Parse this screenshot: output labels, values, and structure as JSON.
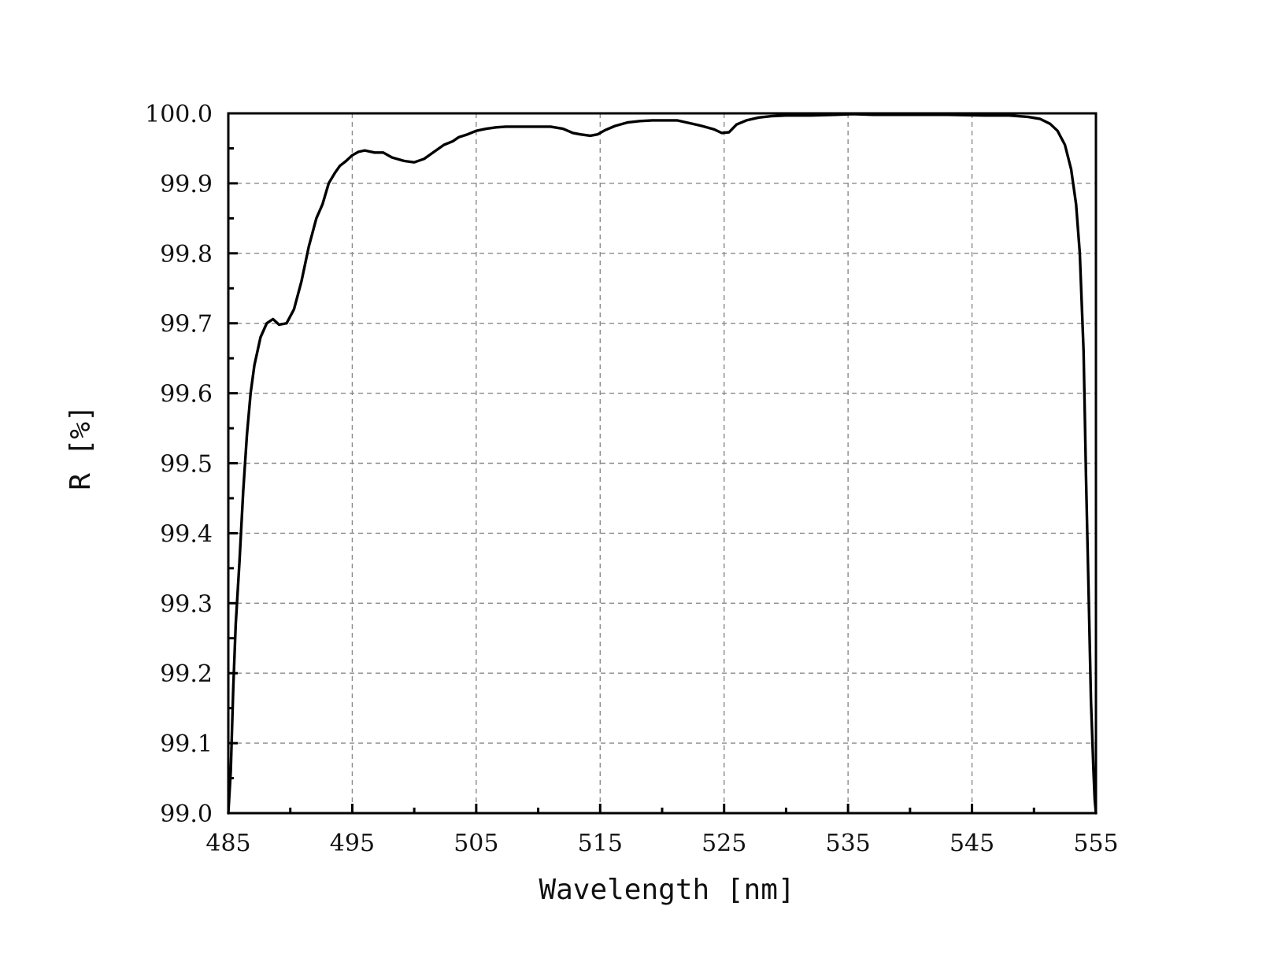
{
  "chart_data": {
    "type": "line",
    "xlabel": "Wavelength [nm]",
    "ylabel": "R [%]",
    "xlim": [
      485,
      555
    ],
    "ylim": [
      99.0,
      100.0
    ],
    "x_ticks": [
      "485",
      "495",
      "505",
      "515",
      "525",
      "535",
      "545",
      "555"
    ],
    "y_ticks": [
      "99.0",
      "99.1",
      "99.2",
      "99.3",
      "99.4",
      "99.5",
      "99.6",
      "99.7",
      "99.8",
      "99.9",
      "100.0"
    ],
    "grid": true,
    "line_color": "#000000",
    "series": [
      {
        "x": [
          485.0,
          485.2,
          485.4,
          485.6,
          485.9,
          486.2,
          486.5,
          486.8,
          487.1,
          487.6,
          488.1,
          488.6,
          489.1,
          489.7,
          490.3,
          490.9,
          491.5,
          492.1,
          492.6,
          493.1,
          493.6,
          494.0,
          494.5,
          495.0,
          495.5,
          496.0,
          496.8,
          497.5,
          498.2,
          499.2,
          500.0,
          500.8,
          501.6,
          502.4,
          503.1,
          503.6,
          504.3,
          505.0,
          505.8,
          506.6,
          507.4,
          508.2,
          509.0,
          510.0,
          511.0,
          512.0,
          512.8,
          513.4,
          514.2,
          514.8,
          515.4,
          516.2,
          517.2,
          518.2,
          519.2,
          520.2,
          521.2,
          522.2,
          523.2,
          524.2,
          524.8,
          525.4,
          526.0,
          526.8,
          527.8,
          528.8,
          530.0,
          532.0,
          534.0,
          535.4,
          537.0,
          540.0,
          543.0,
          546.0,
          548.0,
          549.5,
          550.5,
          551.3,
          551.9,
          552.5,
          553.0,
          553.4,
          553.7,
          554.0,
          554.2,
          554.4,
          554.6,
          554.8,
          554.9,
          555.0
        ],
        "y": [
          99.0,
          99.06,
          99.18,
          99.27,
          99.36,
          99.46,
          99.54,
          99.6,
          99.64,
          99.68,
          99.7,
          99.706,
          99.698,
          99.7,
          99.72,
          99.76,
          99.81,
          99.85,
          99.87,
          99.9,
          99.915,
          99.925,
          99.932,
          99.94,
          99.945,
          99.947,
          99.944,
          99.944,
          99.937,
          99.932,
          99.93,
          99.935,
          99.945,
          99.955,
          99.96,
          99.966,
          99.97,
          99.975,
          99.978,
          99.98,
          99.981,
          99.981,
          99.981,
          99.981,
          99.981,
          99.978,
          99.972,
          99.97,
          99.968,
          99.97,
          99.976,
          99.982,
          99.987,
          99.989,
          99.99,
          99.99,
          99.99,
          99.986,
          99.982,
          99.977,
          99.972,
          99.973,
          99.984,
          99.99,
          99.994,
          99.996,
          99.997,
          99.997,
          99.998,
          99.999,
          99.998,
          99.998,
          99.998,
          99.997,
          99.997,
          99.995,
          99.992,
          99.985,
          99.975,
          99.955,
          99.92,
          99.87,
          99.8,
          99.66,
          99.48,
          99.32,
          99.16,
          99.06,
          99.02,
          99.0
        ]
      }
    ]
  }
}
